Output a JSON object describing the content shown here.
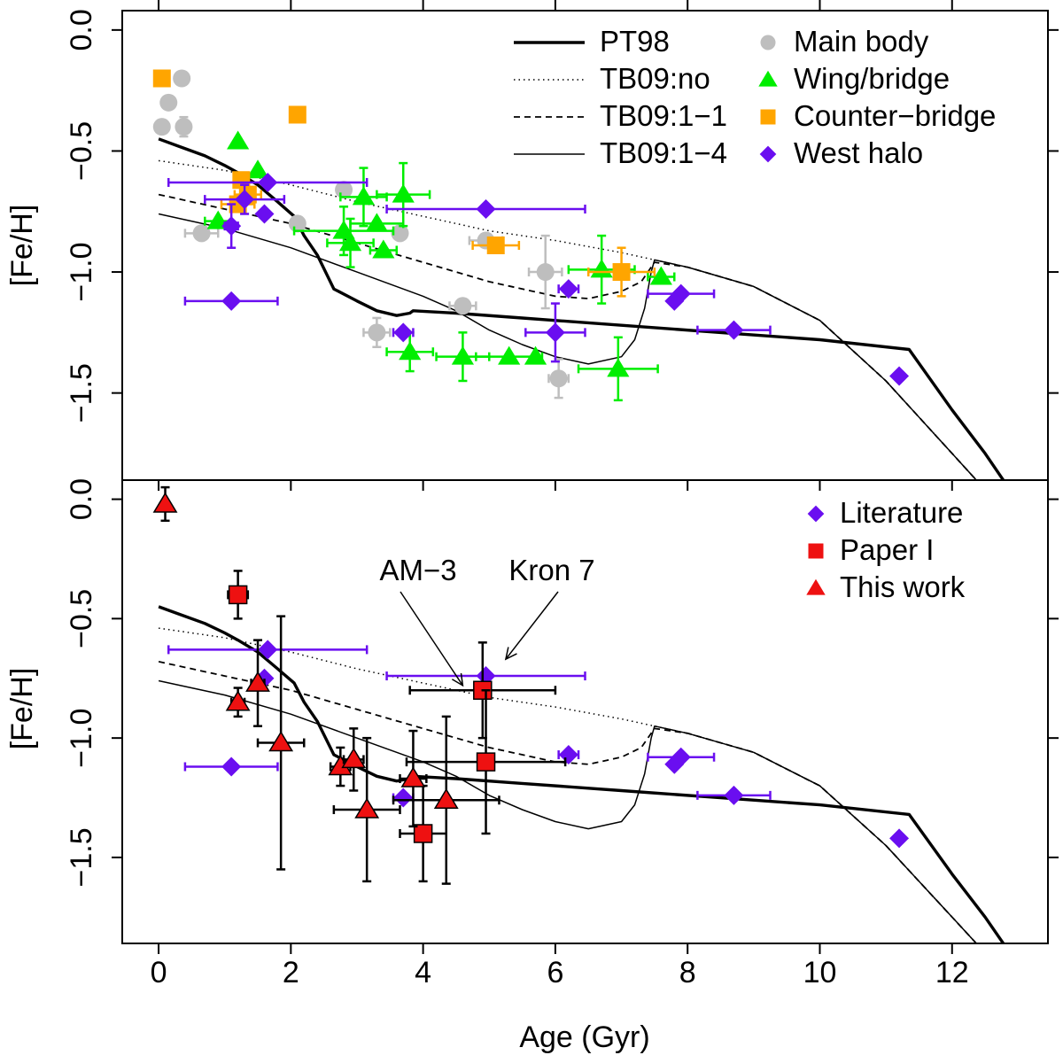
{
  "chart_data": {
    "type": "scatter",
    "xlabel": "Age (Gyr)",
    "xlim": [
      -0.55,
      13.45
    ],
    "xticks": [
      0,
      2,
      4,
      6,
      8,
      10,
      12
    ],
    "colors": {
      "main_body": "#bebebe",
      "wing_bridge": "#00ee00",
      "counter_bridge": "#ffa500",
      "west_halo": "#6a0ef0",
      "paper1": "#ee1111",
      "this_work": "#ee1111",
      "errorbar_black": "#000000"
    },
    "curves": [
      {
        "name": "PT98",
        "style": "thick",
        "points": [
          [
            0,
            -0.45
          ],
          [
            0.3,
            -0.48
          ],
          [
            0.7,
            -0.52
          ],
          [
            1.0,
            -0.56
          ],
          [
            1.2,
            -0.59
          ],
          [
            1.5,
            -0.64
          ],
          [
            1.8,
            -0.71
          ],
          [
            2.05,
            -0.77
          ],
          [
            2.2,
            -0.85
          ],
          [
            2.4,
            -0.93
          ],
          [
            2.65,
            -1.07
          ],
          [
            3.0,
            -1.12
          ],
          [
            3.3,
            -1.16
          ],
          [
            3.6,
            -1.18
          ],
          [
            3.8,
            -1.17
          ],
          [
            3.85,
            -1.16
          ],
          [
            4.5,
            -1.17
          ],
          [
            5.5,
            -1.19
          ],
          [
            7.0,
            -1.22
          ],
          [
            8.5,
            -1.25
          ],
          [
            10.0,
            -1.28
          ],
          [
            11.35,
            -1.32
          ],
          [
            12.0,
            -1.57
          ],
          [
            12.5,
            -1.75
          ],
          [
            13.0,
            -1.95
          ]
        ]
      },
      {
        "name": "TB09:no",
        "style": "dotted",
        "points": [
          [
            0,
            -0.54
          ],
          [
            1,
            -0.58
          ],
          [
            2,
            -0.64
          ],
          [
            3,
            -0.71
          ],
          [
            4,
            -0.77
          ],
          [
            5,
            -0.83
          ],
          [
            6,
            -0.87
          ],
          [
            7,
            -0.92
          ],
          [
            7.5,
            -0.95
          ],
          [
            8,
            -0.98
          ],
          [
            9,
            -1.06
          ],
          [
            10,
            -1.2
          ],
          [
            11,
            -1.45
          ],
          [
            12,
            -1.75
          ],
          [
            12.5,
            -1.9
          ]
        ]
      },
      {
        "name": "TB09:1-1",
        "style": "dashed",
        "points": [
          [
            0,
            -0.68
          ],
          [
            1,
            -0.74
          ],
          [
            2,
            -0.8
          ],
          [
            3,
            -0.88
          ],
          [
            4,
            -0.96
          ],
          [
            5,
            -1.04
          ],
          [
            6,
            -1.1
          ],
          [
            6.5,
            -1.11
          ],
          [
            7,
            -1.08
          ],
          [
            7.3,
            -1.04
          ],
          [
            7.5,
            -0.96
          ],
          [
            8,
            -0.98
          ],
          [
            9,
            -1.06
          ],
          [
            10,
            -1.2
          ],
          [
            11,
            -1.45
          ],
          [
            12,
            -1.75
          ],
          [
            12.5,
            -1.9
          ]
        ]
      },
      {
        "name": "TB09:1-4",
        "style": "thin",
        "points": [
          [
            0,
            -0.76
          ],
          [
            1,
            -0.82
          ],
          [
            2,
            -0.9
          ],
          [
            3,
            -1.0
          ],
          [
            4,
            -1.1
          ],
          [
            4.5,
            -1.16
          ],
          [
            5,
            -1.24
          ],
          [
            5.5,
            -1.3
          ],
          [
            6,
            -1.35
          ],
          [
            6.5,
            -1.38
          ],
          [
            7,
            -1.35
          ],
          [
            7.2,
            -1.28
          ],
          [
            7.35,
            -1.15
          ],
          [
            7.45,
            -1.0
          ],
          [
            7.5,
            -0.95
          ],
          [
            8,
            -0.98
          ],
          [
            9,
            -1.06
          ],
          [
            10,
            -1.2
          ],
          [
            11,
            -1.45
          ],
          [
            12,
            -1.75
          ],
          [
            12.5,
            -1.9
          ]
        ]
      }
    ],
    "panels": [
      {
        "id": "top",
        "ylabel": "[Fe/H]",
        "ylim": [
          -1.86,
          0.08
        ],
        "yticks": [
          0.0,
          -0.5,
          -1.0,
          -1.5
        ],
        "ytick_labels": [
          "0.0",
          "−0.5",
          "−1.0",
          "−1.5"
        ],
        "legend": {
          "position": "top-right",
          "lines": [
            {
              "label": "PT98",
              "style": "thick"
            },
            {
              "label": "TB09:no",
              "style": "dotted"
            },
            {
              "label": "TB09:1−1",
              "style": "dashed"
            },
            {
              "label": "TB09:1−4",
              "style": "thin"
            }
          ],
          "markers": [
            {
              "label": "Main body",
              "marker": "circle",
              "color": "#bebebe"
            },
            {
              "label": "Wing/bridge",
              "marker": "triangle",
              "color": "#00ee00"
            },
            {
              "label": "Counter−bridge",
              "marker": "square",
              "color": "#ffa500"
            },
            {
              "label": "West halo",
              "marker": "diamond",
              "color": "#6a0ef0"
            }
          ]
        },
        "series": [
          {
            "name": "Main body",
            "marker": "circle",
            "color": "#bebebe",
            "points": [
              {
                "x": 0.35,
                "y": -0.2
              },
              {
                "x": 0.15,
                "y": -0.3
              },
              {
                "x": 0.05,
                "y": -0.4
              },
              {
                "x": 0.38,
                "y": -0.4,
                "xe": 0.1,
                "ye": 0.04
              },
              {
                "x": 0.65,
                "y": -0.84,
                "xe": 0.25
              },
              {
                "x": 2.1,
                "y": -0.8
              },
              {
                "x": 2.8,
                "y": -0.66
              },
              {
                "x": 3.65,
                "y": -0.84
              },
              {
                "x": 4.95,
                "y": -0.87,
                "xe": 0.25
              },
              {
                "x": 3.3,
                "y": -1.25,
                "xe": 0.2,
                "ye": 0.06
              },
              {
                "x": 4.6,
                "y": -1.14,
                "xe": 0.2
              },
              {
                "x": 5.85,
                "y": -1.0,
                "xe": 0.25,
                "ye": 0.15
              },
              {
                "x": 6.05,
                "y": -1.44,
                "xe": 0.15,
                "ye": 0.08
              }
            ]
          },
          {
            "name": "Wing/bridge",
            "marker": "triangle",
            "color": "#00ee00",
            "points": [
              {
                "x": 1.2,
                "y": -0.46
              },
              {
                "x": 1.5,
                "y": -0.58
              },
              {
                "x": 0.9,
                "y": -0.79,
                "xe": 0.2
              },
              {
                "x": 2.8,
                "y": -0.83,
                "xe": 0.75,
                "ye": 0.1
              },
              {
                "x": 2.9,
                "y": -0.88,
                "xe": 0.35,
                "ye": 0.1
              },
              {
                "x": 3.1,
                "y": -0.69,
                "xe": 0.35,
                "ye": 0.12
              },
              {
                "x": 3.7,
                "y": -0.68,
                "xe": 0.4,
                "ye": 0.13
              },
              {
                "x": 3.3,
                "y": -0.8,
                "xe": 0.4
              },
              {
                "x": 3.4,
                "y": -0.91,
                "xe": 0.2
              },
              {
                "x": 3.8,
                "y": -1.33,
                "xe": 0.35,
                "ye": 0.08
              },
              {
                "x": 4.6,
                "y": -1.35,
                "xe": 0.4,
                "ye": 0.1
              },
              {
                "x": 5.3,
                "y": -1.35,
                "xe": 0.5
              },
              {
                "x": 5.7,
                "y": -1.35
              },
              {
                "x": 6.7,
                "y": -0.99,
                "xe": 0.5,
                "ye": 0.14
              },
              {
                "x": 7.6,
                "y": -1.02,
                "xe": 0.2
              },
              {
                "x": 6.95,
                "y": -1.4,
                "xe": 0.6,
                "ye": 0.13
              }
            ]
          },
          {
            "name": "Counter-bridge",
            "marker": "square",
            "color": "#ffa500",
            "points": [
              {
                "x": 0.05,
                "y": -0.2
              },
              {
                "x": 2.1,
                "y": -0.35,
                "xe": 0.1
              },
              {
                "x": 1.2,
                "y": -0.72,
                "xe": 0.25
              },
              {
                "x": 1.25,
                "y": -0.62
              },
              {
                "x": 1.35,
                "y": -0.68,
                "xe": 0.2
              },
              {
                "x": 5.1,
                "y": -0.89,
                "xe": 0.35
              },
              {
                "x": 7.0,
                "y": -1.0,
                "xe": 0.5,
                "ye": 0.1
              }
            ]
          },
          {
            "name": "West halo",
            "marker": "diamond",
            "color": "#6a0ef0",
            "points": [
              {
                "x": 1.65,
                "y": -0.63,
                "xe": 1.5
              },
              {
                "x": 1.3,
                "y": -0.7,
                "xe": 0.6,
                "ye": 0.06
              },
              {
                "x": 1.6,
                "y": -0.76,
                "xe": 0.05
              },
              {
                "x": 1.1,
                "y": -0.81,
                "xe": 0.1,
                "ye": 0.09
              },
              {
                "x": 4.95,
                "y": -0.74,
                "xe": 1.5
              },
              {
                "x": 1.1,
                "y": -1.12,
                "xe": 0.7
              },
              {
                "x": 3.7,
                "y": -1.25,
                "xe": 0.15
              },
              {
                "x": 6.2,
                "y": -1.07,
                "xe": 0.15
              },
              {
                "x": 6.0,
                "y": -1.25,
                "xe": 0.45,
                "ye": 0.12
              },
              {
                "x": 7.9,
                "y": -1.09,
                "xe": 0.5
              },
              {
                "x": 7.8,
                "y": -1.12
              },
              {
                "x": 8.7,
                "y": -1.24,
                "xe": 0.55
              },
              {
                "x": 11.2,
                "y": -1.43
              }
            ]
          }
        ]
      },
      {
        "id": "bottom",
        "ylabel": "[Fe/H]",
        "ylim": [
          -1.86,
          0.08
        ],
        "yticks": [
          0.0,
          -0.5,
          -1.0,
          -1.5
        ],
        "ytick_labels": [
          "0.0",
          "−0.5",
          "−1.0",
          "−1.5"
        ],
        "legend": {
          "position": "top-right",
          "markers": [
            {
              "label": "Literature",
              "marker": "diamond",
              "color": "#6a0ef0"
            },
            {
              "label": "Paper I",
              "marker": "square",
              "color": "#ee1111"
            },
            {
              "label": "This work",
              "marker": "triangle",
              "color": "#ee1111"
            }
          ]
        },
        "annotations": [
          {
            "text": "AM−3",
            "point_x": 4.6,
            "point_y": -0.78
          },
          {
            "text": "Kron 7",
            "point_x": 5.25,
            "point_y": -0.67
          }
        ],
        "series": [
          {
            "name": "Literature",
            "marker": "diamond",
            "color": "#6a0ef0",
            "errcolor": "#6a0ef0",
            "points": [
              {
                "x": 1.65,
                "y": -0.63,
                "xe": 1.5
              },
              {
                "x": 1.6,
                "y": -0.75
              },
              {
                "x": 4.95,
                "y": -0.74,
                "xe": 1.5
              },
              {
                "x": 1.1,
                "y": -1.12,
                "xe": 0.7
              },
              {
                "x": 3.7,
                "y": -1.25,
                "xe": 0.15
              },
              {
                "x": 6.2,
                "y": -1.07,
                "xe": 0.15
              },
              {
                "x": 7.9,
                "y": -1.08,
                "xe": 0.5
              },
              {
                "x": 7.8,
                "y": -1.11
              },
              {
                "x": 8.7,
                "y": -1.24,
                "xe": 0.55
              },
              {
                "x": 11.2,
                "y": -1.42
              }
            ]
          },
          {
            "name": "Paper I",
            "marker": "square",
            "color": "#ee1111",
            "errcolor": "#000000",
            "points": [
              {
                "x": 1.2,
                "y": -0.4,
                "xe": 0.15,
                "ye": 0.1
              },
              {
                "x": 4.9,
                "y": -0.8,
                "xe": 1.1,
                "ye": 0.2
              },
              {
                "x": 4.95,
                "y": -1.1,
                "xe": 1.2,
                "ye": 0.3
              },
              {
                "x": 4.0,
                "y": -1.4,
                "xe": 0.35,
                "ye": 0.2
              }
            ]
          },
          {
            "name": "This work",
            "marker": "triangle",
            "color": "#ee1111",
            "errcolor": "#000000",
            "points": [
              {
                "x": 0.1,
                "y": -0.02,
                "ye": 0.07
              },
              {
                "x": 1.2,
                "y": -0.85,
                "xe": 0.1,
                "ye": 0.06
              },
              {
                "x": 1.5,
                "y": -0.77,
                "xe": 0.1,
                "ye": 0.18
              },
              {
                "x": 1.85,
                "y": -1.02,
                "xe": 0.35,
                "ye": 0.53
              },
              {
                "x": 2.75,
                "y": -1.12,
                "xe": 0.15,
                "ye": 0.08
              },
              {
                "x": 2.95,
                "y": -1.09,
                "xe": 0.15,
                "ye": 0.13
              },
              {
                "x": 3.15,
                "y": -1.3,
                "xe": 0.5,
                "ye": 0.3
              },
              {
                "x": 3.85,
                "y": -1.17,
                "xe": 0.2,
                "ye": 0.2
              },
              {
                "x": 4.35,
                "y": -1.26,
                "xe": 0.8,
                "ye": 0.35
              }
            ]
          }
        ]
      }
    ]
  }
}
